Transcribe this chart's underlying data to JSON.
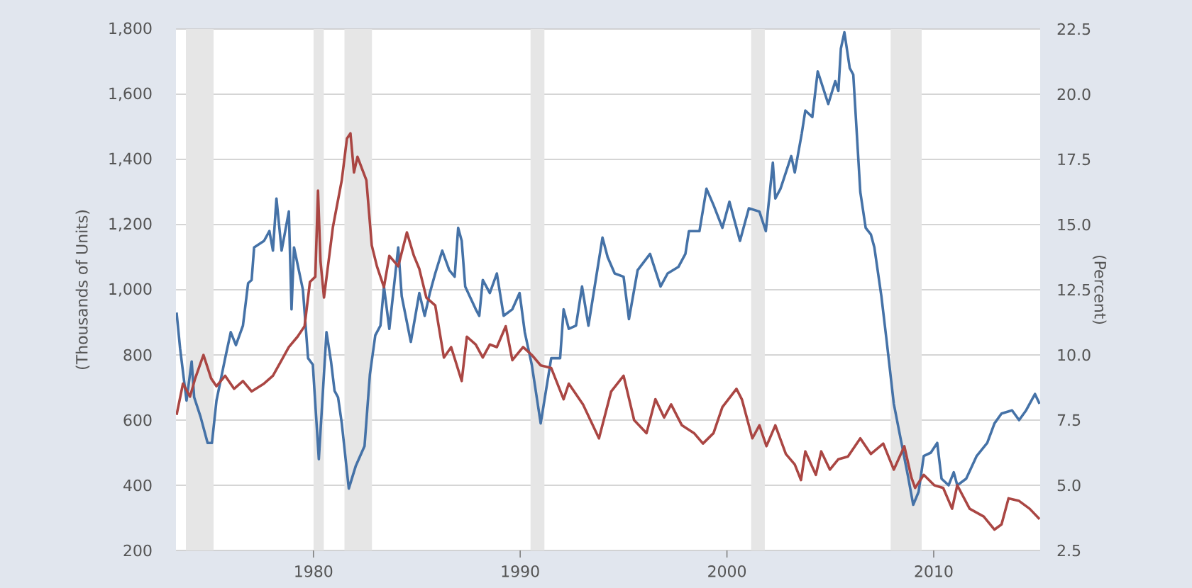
{
  "chart_data": {
    "type": "line",
    "ylabel": "(Thousands of Units)",
    "y2label": "(Percent)",
    "xlim": [
      1973.35,
      2015.15
    ],
    "xticks": [
      1980,
      1990,
      2000,
      2010
    ],
    "ylim": [
      200,
      1800
    ],
    "yticks": [
      200,
      400,
      600,
      800,
      {
        "value": 1000,
        "label": "1,000"
      },
      {
        "value": 1200,
        "label": "1,200"
      },
      {
        "value": 1400,
        "label": "1,400"
      },
      {
        "value": 1600,
        "label": "1,600"
      },
      {
        "value": 1800,
        "label": "1,800"
      }
    ],
    "y2lim": [
      2.5,
      22.5
    ],
    "y2ticks": [
      2.5,
      {
        "value": 5,
        "label": "5.0"
      },
      7.5,
      {
        "value": 10,
        "label": "10.0"
      },
      12.5,
      {
        "value": 15,
        "label": "15.0"
      },
      17.5,
      {
        "value": 20,
        "label": "20.0"
      },
      22.5
    ],
    "grid": "y",
    "bands": [
      {
        "axis": "x",
        "from": 1973.83,
        "to": 1975.17,
        "color": "#e6e6e6"
      },
      {
        "axis": "x",
        "from": 1980.0,
        "to": 1980.5,
        "color": "#e6e6e6"
      },
      {
        "axis": "x",
        "from": 1981.5,
        "to": 1982.83,
        "color": "#e6e6e6"
      },
      {
        "axis": "x",
        "from": 1990.5,
        "to": 1991.17,
        "color": "#e6e6e6"
      },
      {
        "axis": "x",
        "from": 2001.17,
        "to": 2001.83,
        "color": "#e6e6e6"
      },
      {
        "axis": "x",
        "from": 2007.92,
        "to": 2009.42,
        "color": "#e6e6e6"
      }
    ],
    "series": [
      {
        "color": "#4572a7",
        "x": [
          1973.38,
          1973.55,
          1973.86,
          1974.11,
          1974.23,
          1974.54,
          1974.88,
          1975.09,
          1975.31,
          1975.73,
          1976.0,
          1976.25,
          1976.59,
          1976.84,
          1977.01,
          1977.13,
          1977.61,
          1977.87,
          1978.04,
          1978.21,
          1978.46,
          1978.81,
          1978.94,
          1979.06,
          1979.49,
          1979.74,
          1979.97,
          1980.26,
          1980.63,
          1980.85,
          1981.02,
          1981.19,
          1981.37,
          1981.71,
          1982.05,
          1982.47,
          1982.73,
          1982.99,
          1983.24,
          1983.41,
          1983.67,
          1984.1,
          1984.27,
          1984.71,
          1985.12,
          1985.38,
          1985.63,
          1985.89,
          1986.23,
          1986.57,
          1986.83,
          1987.0,
          1987.17,
          1987.34,
          1987.85,
          1988.02,
          1988.19,
          1988.53,
          1988.87,
          1989.2,
          1989.62,
          1989.97,
          1990.22,
          1990.56,
          1990.99,
          1991.5,
          1991.93,
          1992.1,
          1992.35,
          1992.7,
          1992.99,
          1993.3,
          1993.98,
          1994.23,
          1994.57,
          1995.0,
          1995.26,
          1995.68,
          1996.28,
          1996.79,
          1997.13,
          1997.65,
          1997.99,
          1998.16,
          1998.67,
          1999.01,
          1999.35,
          1999.78,
          2000.12,
          2000.63,
          2001.06,
          2001.57,
          2001.88,
          2002.22,
          2002.34,
          2002.59,
          2003.11,
          2003.28,
          2003.62,
          2003.79,
          2004.13,
          2004.39,
          2004.9,
          2005.24,
          2005.39,
          2005.51,
          2005.68,
          2005.94,
          2006.11,
          2006.45,
          2006.71,
          2006.96,
          2007.13,
          2007.47,
          2007.73,
          2008.07,
          2008.41,
          2008.75,
          2009.01,
          2009.27,
          2009.52,
          2009.86,
          2010.17,
          2010.38,
          2010.72,
          2010.97,
          2011.14,
          2011.57,
          2012.08,
          2012.59,
          2012.94,
          2013.28,
          2013.79,
          2014.13,
          2014.47,
          2014.9,
          2015.12
        ],
        "values": [
          930,
          820,
          660,
          780,
          670,
          610,
          530,
          530,
          660,
          790,
          870,
          830,
          890,
          1020,
          1030,
          1130,
          1150,
          1180,
          1120,
          1280,
          1120,
          1240,
          940,
          1130,
          1000,
          790,
          770,
          480,
          870,
          780,
          690,
          670,
          590,
          390,
          460,
          520,
          740,
          860,
          890,
          1010,
          880,
          1130,
          980,
          840,
          990,
          920,
          990,
          1050,
          1120,
          1060,
          1040,
          1190,
          1150,
          1010,
          940,
          920,
          1030,
          990,
          1050,
          920,
          940,
          990,
          870,
          770,
          590,
          790,
          790,
          940,
          880,
          890,
          1010,
          890,
          1160,
          1100,
          1050,
          1040,
          910,
          1060,
          1110,
          1010,
          1050,
          1070,
          1110,
          1180,
          1180,
          1310,
          1260,
          1190,
          1270,
          1150,
          1250,
          1240,
          1180,
          1390,
          1280,
          1310,
          1410,
          1360,
          1480,
          1550,
          1530,
          1670,
          1570,
          1640,
          1610,
          1740,
          1790,
          1680,
          1660,
          1300,
          1190,
          1170,
          1130,
          980,
          840,
          650,
          540,
          430,
          340,
          380,
          490,
          500,
          530,
          420,
          400,
          440,
          400,
          420,
          490,
          530,
          590,
          620,
          630,
          600,
          630,
          680,
          650
        ]
      },
      {
        "color": "#aa4643",
        "axis": "y2",
        "x": [
          1973.38,
          1973.69,
          1974.03,
          1974.28,
          1974.68,
          1975.05,
          1975.31,
          1975.73,
          1976.16,
          1976.59,
          1977.01,
          1977.61,
          1978.04,
          1978.46,
          1978.81,
          1979.23,
          1979.57,
          1979.83,
          1980.09,
          1980.22,
          1980.34,
          1980.51,
          1980.94,
          1981.37,
          1981.62,
          1981.79,
          1981.96,
          1982.13,
          1982.56,
          1982.82,
          1983.07,
          1983.41,
          1983.67,
          1984.1,
          1984.52,
          1984.86,
          1985.12,
          1985.46,
          1985.89,
          1986.31,
          1986.66,
          1987.17,
          1987.42,
          1987.85,
          1988.19,
          1988.53,
          1988.87,
          1989.3,
          1989.62,
          1990.14,
          1990.56,
          1990.99,
          1991.5,
          1992.1,
          1992.35,
          1993.04,
          1993.81,
          1994.4,
          1995.0,
          1995.51,
          1996.11,
          1996.54,
          1996.96,
          1997.3,
          1997.82,
          1998.41,
          1998.84,
          1999.35,
          1999.78,
          2000.46,
          2000.72,
          2001.23,
          2001.57,
          2001.91,
          2002.34,
          2002.85,
          2003.28,
          2003.58,
          2003.79,
          2004.3,
          2004.56,
          2004.98,
          2005.39,
          2005.85,
          2006.45,
          2006.96,
          2007.56,
          2008.07,
          2008.58,
          2008.92,
          2009.1,
          2009.52,
          2010.03,
          2010.46,
          2010.89,
          2011.14,
          2011.74,
          2012.42,
          2012.94,
          2013.28,
          2013.62,
          2014.13,
          2014.64,
          2015.12
        ],
        "values": [
          7.7,
          8.9,
          8.4,
          9.1,
          10.0,
          9.1,
          8.8,
          9.2,
          8.7,
          9.0,
          8.6,
          8.9,
          9.2,
          9.8,
          10.3,
          10.7,
          11.1,
          12.8,
          13.0,
          16.3,
          13.6,
          12.2,
          14.9,
          16.7,
          18.3,
          18.5,
          17.0,
          17.6,
          16.7,
          14.2,
          13.4,
          12.6,
          13.8,
          13.4,
          14.7,
          13.8,
          13.3,
          12.2,
          11.9,
          9.9,
          10.3,
          9.0,
          10.7,
          10.4,
          9.9,
          10.4,
          10.3,
          11.1,
          9.8,
          10.3,
          10.0,
          9.6,
          9.5,
          8.3,
          8.9,
          8.1,
          6.8,
          8.6,
          9.2,
          7.5,
          7.0,
          8.3,
          7.6,
          8.1,
          7.3,
          7.0,
          6.6,
          7.0,
          8.0,
          8.7,
          8.3,
          6.8,
          7.3,
          6.5,
          7.3,
          6.2,
          5.8,
          5.2,
          6.3,
          5.4,
          6.3,
          5.6,
          6.0,
          6.1,
          6.8,
          6.2,
          6.6,
          5.6,
          6.5,
          5.3,
          4.9,
          5.4,
          5.0,
          4.9,
          4.1,
          5.0,
          4.1,
          3.8,
          3.3,
          3.5,
          4.5,
          4.4,
          4.1,
          3.7
        ]
      }
    ]
  }
}
